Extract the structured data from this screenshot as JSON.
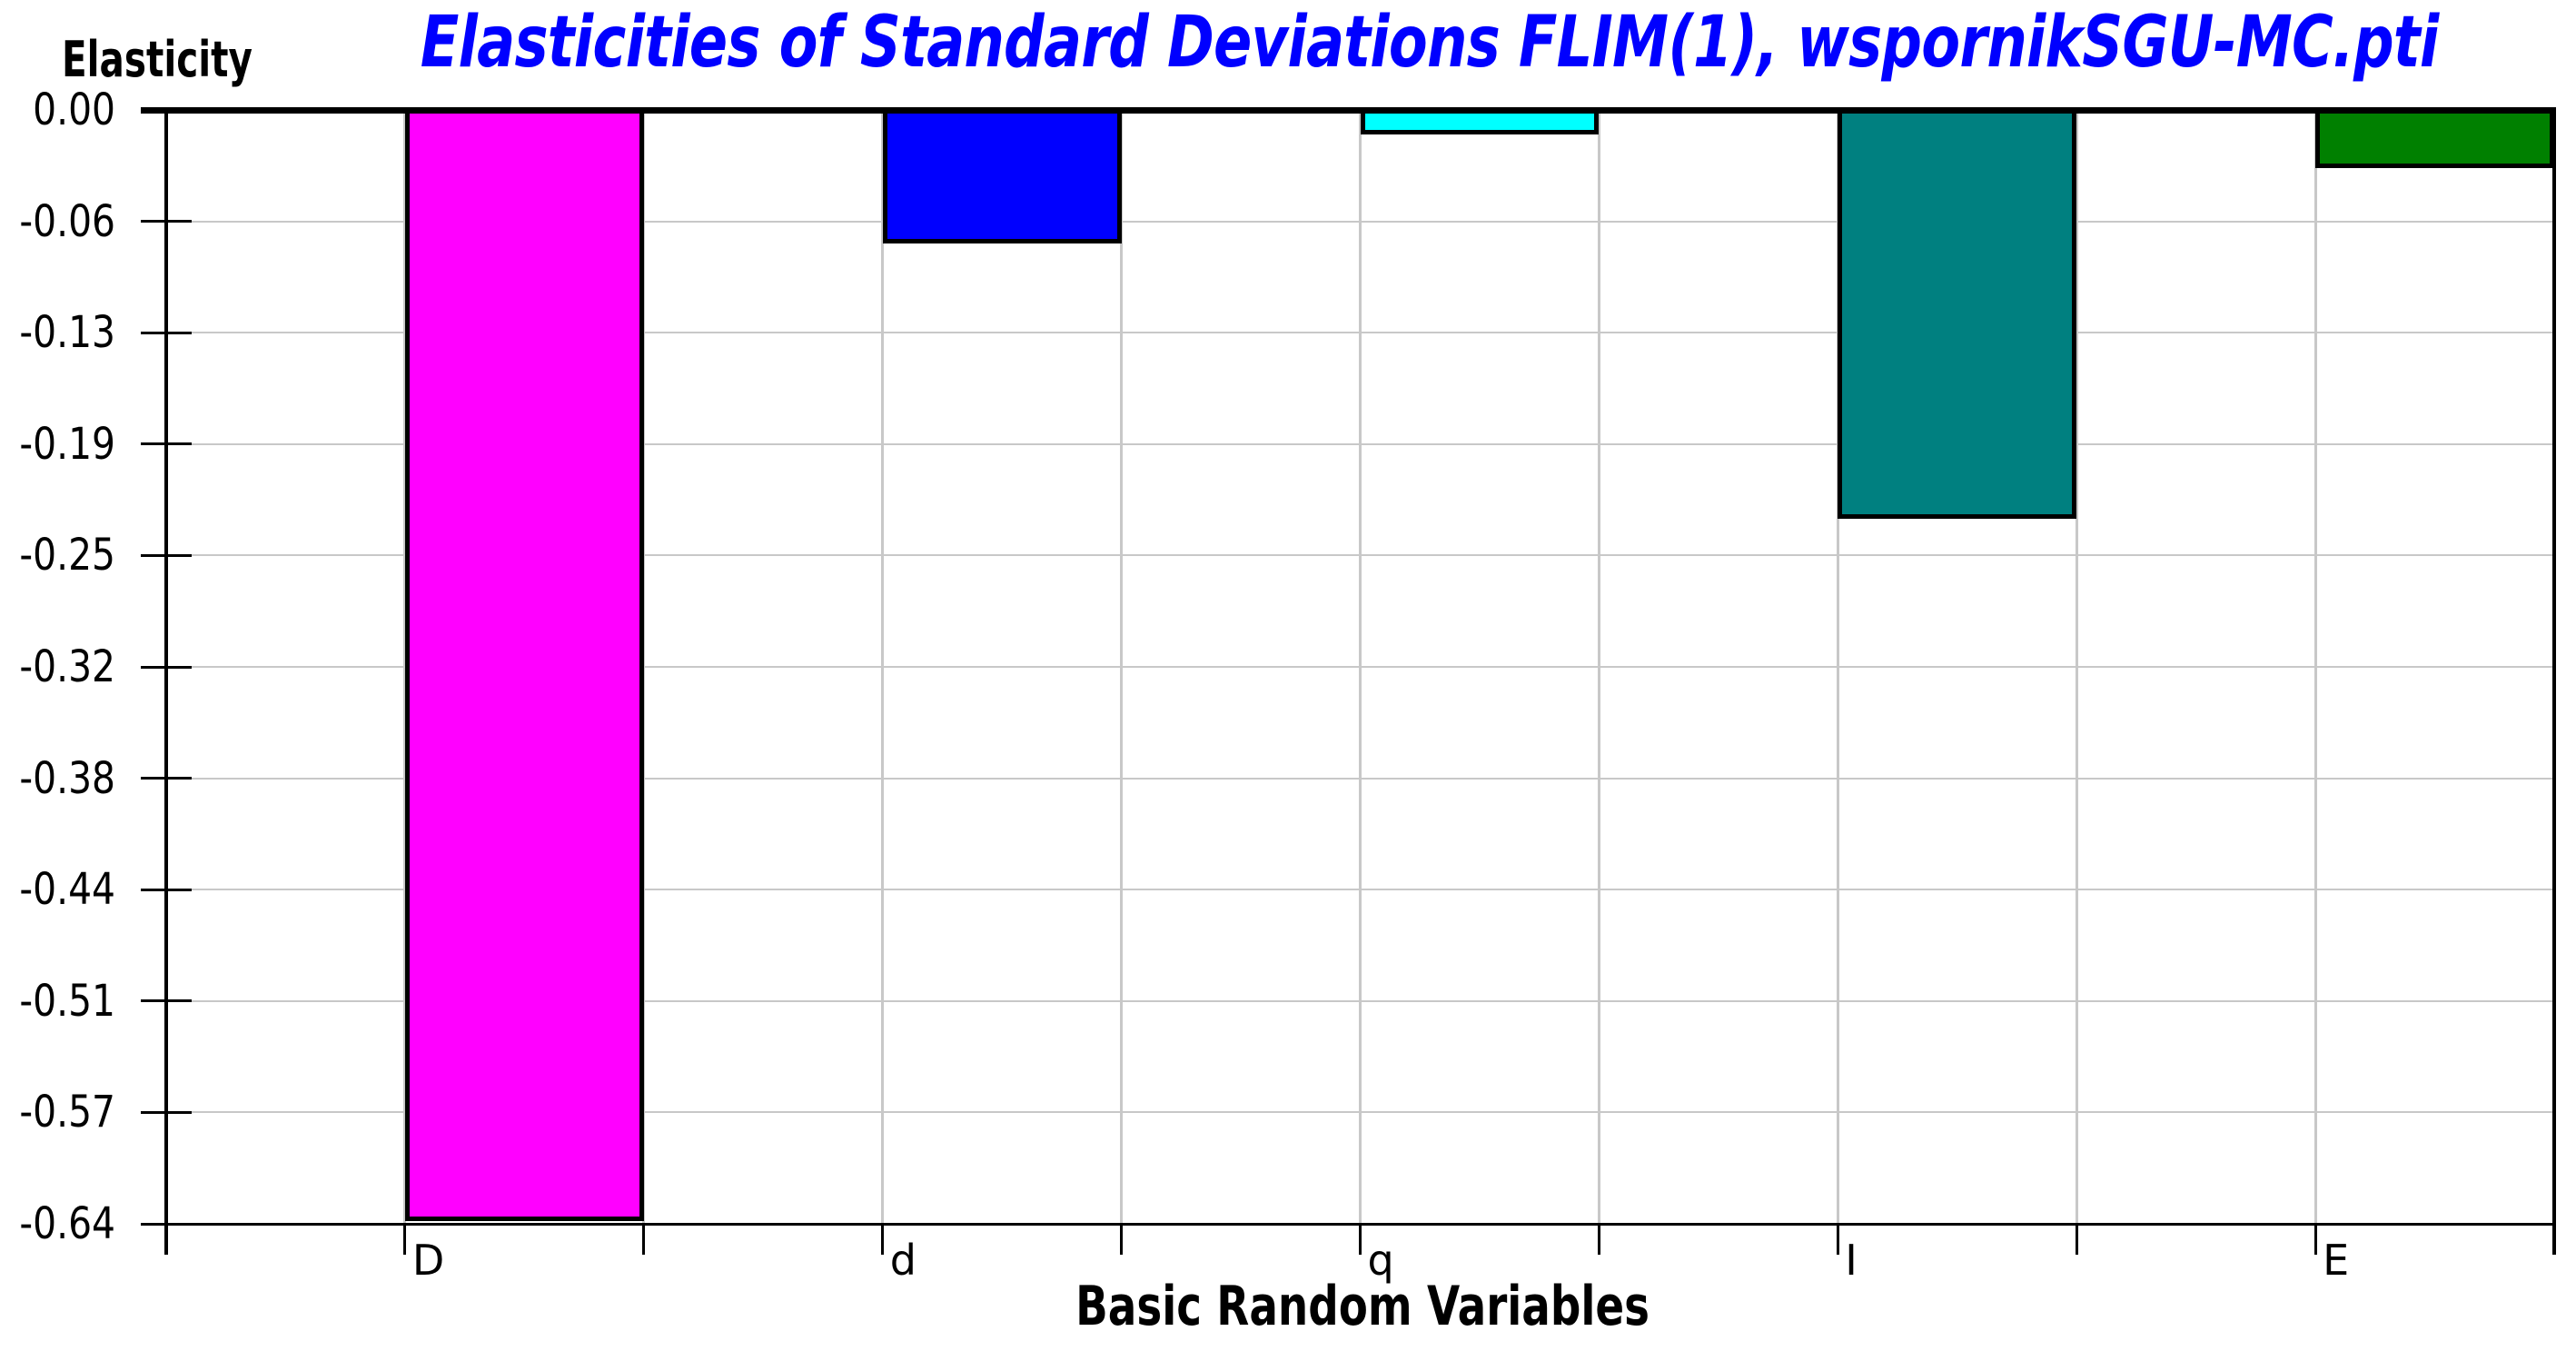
{
  "chart_data": {
    "type": "bar",
    "title": "Elasticities of Standard Deviations FLIM(1), wspornikSGU-MC.pti",
    "title_color": "#0000ff",
    "y_axis_corner_label": "Elasticity",
    "xlabel": "Basic Random Variables",
    "categories": [
      "D",
      "d",
      "q",
      "I",
      "E"
    ],
    "values": [
      -0.634,
      -0.076,
      -0.014,
      -0.233,
      -0.033
    ],
    "bar_colors": [
      "#ff00ff",
      "#0000ff",
      "#00ffff",
      "#008080",
      "#008000"
    ],
    "bar_border_color": "#000000",
    "y_tick_labels": [
      "0.00",
      "-0.06",
      "-0.13",
      "-0.19",
      "-0.25",
      "-0.32",
      "-0.38",
      "-0.44",
      "-0.51",
      "-0.57",
      "-0.64"
    ],
    "ylim": [
      0,
      -0.6355
    ],
    "y_tick_step": -0.0635,
    "grid": true,
    "gridline_color": "#c8c8c8",
    "axis_color": "#000000",
    "legend": false,
    "orientation": "vertical-bars-extending-downward"
  }
}
